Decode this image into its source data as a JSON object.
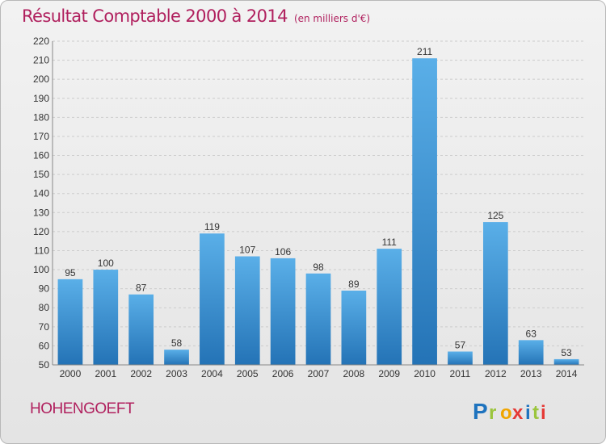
{
  "header": {
    "title": "Résultat Comptable 2000 à 2014",
    "unit": "(en milliers d'€)"
  },
  "footer": {
    "town": "HOHENGOEFT",
    "logo": [
      "P",
      "r",
      "o",
      "x",
      "i",
      "t",
      "i"
    ],
    "logo_colors": [
      "#1e73be",
      "#9bc53d",
      "#f0a500",
      "#e53935",
      "#1e73be",
      "#9bc53d",
      "#e53935"
    ]
  },
  "colors": {
    "title": "#b0205e",
    "bar_light": "#5aafe8",
    "bar_dark": "#2473b6",
    "grid": "#cccccc"
  },
  "chart_data": {
    "type": "bar",
    "title": "Résultat Comptable 2000 à 2014",
    "subtitle": "(en milliers d'€)",
    "categories": [
      "2000",
      "2001",
      "2002",
      "2003",
      "2004",
      "2005",
      "2006",
      "2007",
      "2008",
      "2009",
      "2010",
      "2011",
      "2012",
      "2013",
      "2014"
    ],
    "values": [
      95,
      100,
      87,
      58,
      119,
      107,
      106,
      98,
      89,
      111,
      211,
      57,
      125,
      63,
      53
    ],
    "ylim": [
      50,
      220
    ],
    "ytick_step": 10,
    "grid": "horizontal dashed",
    "legend": "none"
  }
}
